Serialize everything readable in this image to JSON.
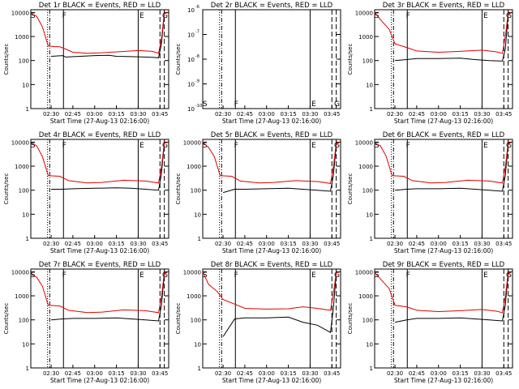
{
  "figure": {
    "colors": {
      "events": "#000000",
      "lld": "#e00000",
      "axes": "#000000",
      "background": "#ffffff"
    },
    "x_tick_labels": [
      "02:30",
      "02:45",
      "03:00",
      "03:15",
      "03:30",
      "03:45"
    ],
    "x_tick_minutes": [
      30,
      45,
      60,
      75,
      90,
      105
    ],
    "x_range_minutes": [
      16,
      111
    ],
    "xlabel": "Start Time (27-Aug-13 02:16:00)",
    "ylabel": "Counts/sec",
    "log_y_ticks": [
      {
        "value": 1,
        "label": "1"
      },
      {
        "value": 10,
        "label": "10"
      },
      {
        "value": 100,
        "label": "100"
      },
      {
        "value": 1000,
        "label": "1000"
      },
      {
        "value": 10000,
        "label": "10000"
      }
    ],
    "event_lines": [
      {
        "minute": 27.5,
        "style": "dotted"
      },
      {
        "minute": 29,
        "style": "dashdot"
      },
      {
        "minute": 38.5,
        "style": "solid"
      },
      {
        "minute": 90,
        "style": "solid"
      },
      {
        "minute": 105,
        "style": "dashed"
      },
      {
        "minute": 108,
        "style": "dashed"
      }
    ],
    "markers": [
      {
        "minute": 17.5,
        "label": "S"
      },
      {
        "minute": 39,
        "label": "F"
      },
      {
        "minute": 92.5,
        "label": "E"
      },
      {
        "minute": 108.5,
        "label": "G"
      }
    ]
  },
  "chart_data": [
    {
      "type": "line",
      "title": "Det 1r BLACK = Events, RED = LLD",
      "ylim": [
        1,
        13000
      ],
      "series": [
        {
          "name": "Events",
          "color": "#000000",
          "points": [
            [
              30,
              150
            ],
            [
              38,
              160
            ],
            [
              40,
              140
            ],
            [
              50,
              150
            ],
            [
              60,
              160
            ],
            [
              70,
              165
            ],
            [
              75,
              150
            ],
            [
              85,
              145
            ],
            [
              95,
              140
            ],
            [
              100,
              135
            ],
            [
              104,
              130
            ],
            [
              106,
              500
            ],
            [
              107,
              2000
            ],
            [
              108,
              9000
            ],
            [
              110,
              10000
            ]
          ]
        },
        {
          "name": "LLD",
          "color": "#e00000",
          "points": [
            [
              16,
              9000
            ],
            [
              20,
              7000
            ],
            [
              24,
              2500
            ],
            [
              28,
              400
            ],
            [
              32,
              380
            ],
            [
              36,
              370
            ],
            [
              40,
              300
            ],
            [
              45,
              220
            ],
            [
              55,
              200
            ],
            [
              65,
              210
            ],
            [
              75,
              230
            ],
            [
              90,
              260
            ],
            [
              100,
              240
            ],
            [
              104,
              200
            ],
            [
              106,
              800
            ],
            [
              108,
              9000
            ],
            [
              110,
              10000
            ]
          ]
        }
      ]
    },
    {
      "type": "line",
      "title": "Det 2r BLACK = Events, RED = LLD",
      "ylim": [
        1e-10,
        1e-06
      ],
      "series": [
        {
          "name": "Events",
          "color": "#000000",
          "points": []
        },
        {
          "name": "LLD",
          "color": "#e00000",
          "points": []
        }
      ]
    },
    {
      "type": "line",
      "title": "Det 3r BLACK = Events, RED = LLD",
      "ylim": [
        1,
        13000
      ],
      "series": [
        {
          "name": "Events",
          "color": "#000000",
          "points": [
            [
              30,
              100
            ],
            [
              38,
              110
            ],
            [
              45,
              120
            ],
            [
              60,
              120
            ],
            [
              75,
              125
            ],
            [
              85,
              110
            ],
            [
              95,
              100
            ],
            [
              104,
              95
            ],
            [
              106,
              300
            ],
            [
              108,
              8000
            ],
            [
              110,
              10000
            ]
          ]
        },
        {
          "name": "LLD",
          "color": "#e00000",
          "points": [
            [
              16,
              10000
            ],
            [
              20,
              5000
            ],
            [
              26,
              2000
            ],
            [
              30,
              500
            ],
            [
              38,
              350
            ],
            [
              45,
              250
            ],
            [
              60,
              220
            ],
            [
              75,
              240
            ],
            [
              90,
              270
            ],
            [
              100,
              230
            ],
            [
              104,
              200
            ],
            [
              106,
              1000
            ],
            [
              108,
              9000
            ],
            [
              110,
              10000
            ]
          ]
        }
      ]
    },
    {
      "type": "line",
      "title": "Det 4r BLACK = Events, RED = LLD",
      "ylim": [
        1,
        13000
      ],
      "series": [
        {
          "name": "Events",
          "color": "#000000",
          "points": [
            [
              30,
              110
            ],
            [
              38,
              110
            ],
            [
              45,
              115
            ],
            [
              60,
              120
            ],
            [
              75,
              125
            ],
            [
              85,
              120
            ],
            [
              95,
              110
            ],
            [
              104,
              100
            ],
            [
              106,
              500
            ],
            [
              108,
              9000
            ],
            [
              110,
              10000
            ]
          ]
        },
        {
          "name": "LLD",
          "color": "#e00000",
          "points": [
            [
              16,
              9500
            ],
            [
              20,
              7000
            ],
            [
              24,
              2500
            ],
            [
              28,
              400
            ],
            [
              36,
              380
            ],
            [
              42,
              250
            ],
            [
              55,
              200
            ],
            [
              65,
              210
            ],
            [
              80,
              260
            ],
            [
              95,
              240
            ],
            [
              104,
              200
            ],
            [
              106,
              900
            ],
            [
              108,
              9000
            ],
            [
              110,
              10000
            ]
          ]
        }
      ]
    },
    {
      "type": "line",
      "title": "Det 5r BLACK = Events, RED = LLD",
      "ylim": [
        1,
        13000
      ],
      "series": [
        {
          "name": "Events",
          "color": "#000000",
          "points": [
            [
              30,
              80
            ],
            [
              38,
              110
            ],
            [
              45,
              110
            ],
            [
              60,
              115
            ],
            [
              75,
              120
            ],
            [
              85,
              110
            ],
            [
              95,
              100
            ],
            [
              104,
              90
            ],
            [
              106,
              400
            ],
            [
              108,
              8000
            ],
            [
              110,
              10000
            ]
          ]
        },
        {
          "name": "LLD",
          "color": "#e00000",
          "points": [
            [
              16,
              10000
            ],
            [
              20,
              6000
            ],
            [
              24,
              2500
            ],
            [
              28,
              400
            ],
            [
              36,
              380
            ],
            [
              42,
              240
            ],
            [
              55,
              200
            ],
            [
              65,
              210
            ],
            [
              80,
              250
            ],
            [
              95,
              230
            ],
            [
              104,
              190
            ],
            [
              106,
              900
            ],
            [
              108,
              9000
            ],
            [
              110,
              10000
            ]
          ]
        }
      ]
    },
    {
      "type": "line",
      "title": "Det 6r BLACK = Events, RED = LLD",
      "ylim": [
        1,
        13000
      ],
      "series": [
        {
          "name": "Events",
          "color": "#000000",
          "points": [
            [
              30,
              100
            ],
            [
              38,
              110
            ],
            [
              45,
              115
            ],
            [
              60,
              115
            ],
            [
              75,
              120
            ],
            [
              85,
              110
            ],
            [
              95,
              100
            ],
            [
              104,
              90
            ],
            [
              106,
              400
            ],
            [
              108,
              8000
            ],
            [
              110,
              10000
            ]
          ]
        },
        {
          "name": "LLD",
          "color": "#e00000",
          "points": [
            [
              16,
              9000
            ],
            [
              20,
              7000
            ],
            [
              24,
              2500
            ],
            [
              28,
              400
            ],
            [
              36,
              380
            ],
            [
              42,
              250
            ],
            [
              55,
              200
            ],
            [
              65,
              210
            ],
            [
              80,
              260
            ],
            [
              95,
              240
            ],
            [
              104,
              200
            ],
            [
              106,
              900
            ],
            [
              108,
              9000
            ],
            [
              110,
              10000
            ]
          ]
        }
      ]
    },
    {
      "type": "line",
      "title": "Det 7r BLACK = Events, RED = LLD",
      "ylim": [
        1,
        13000
      ],
      "series": [
        {
          "name": "Events",
          "color": "#000000",
          "points": [
            [
              30,
              100
            ],
            [
              38,
              110
            ],
            [
              45,
              115
            ],
            [
              60,
              115
            ],
            [
              75,
              120
            ],
            [
              85,
              110
            ],
            [
              95,
              100
            ],
            [
              104,
              90
            ],
            [
              106,
              400
            ],
            [
              108,
              8000
            ],
            [
              110,
              10000
            ]
          ]
        },
        {
          "name": "LLD",
          "color": "#e00000",
          "points": [
            [
              16,
              8000
            ],
            [
              20,
              6000
            ],
            [
              24,
              2500
            ],
            [
              28,
              400
            ],
            [
              36,
              380
            ],
            [
              42,
              250
            ],
            [
              55,
              200
            ],
            [
              65,
              210
            ],
            [
              80,
              260
            ],
            [
              95,
              240
            ],
            [
              104,
              200
            ],
            [
              106,
              900
            ],
            [
              108,
              9000
            ],
            [
              110,
              10000
            ]
          ]
        }
      ]
    },
    {
      "type": "line",
      "title": "Det 8r BLACK = Events, RED = LLD",
      "ylim": [
        1,
        13000
      ],
      "series": [
        {
          "name": "Events",
          "color": "#000000",
          "points": [
            [
              30,
              20
            ],
            [
              38,
              110
            ],
            [
              45,
              120
            ],
            [
              60,
              120
            ],
            [
              75,
              130
            ],
            [
              85,
              80
            ],
            [
              95,
              60
            ],
            [
              104,
              30
            ],
            [
              106,
              300
            ],
            [
              108,
              9000
            ],
            [
              110,
              10000
            ]
          ]
        },
        {
          "name": "LLD",
          "color": "#e00000",
          "points": [
            [
              16,
              10000
            ],
            [
              20,
              3000
            ],
            [
              26,
              1500
            ],
            [
              30,
              700
            ],
            [
              38,
              450
            ],
            [
              45,
              300
            ],
            [
              60,
              280
            ],
            [
              75,
              290
            ],
            [
              85,
              350
            ],
            [
              95,
              300
            ],
            [
              104,
              250
            ],
            [
              106,
              1200
            ],
            [
              108,
              9000
            ],
            [
              110,
              10000
            ]
          ]
        }
      ]
    },
    {
      "type": "line",
      "title": "Det 9r BLACK = Events, RED = LLD",
      "ylim": [
        1,
        13000
      ],
      "series": [
        {
          "name": "Events",
          "color": "#000000",
          "points": [
            [
              30,
              80
            ],
            [
              38,
              100
            ],
            [
              45,
              115
            ],
            [
              60,
              115
            ],
            [
              75,
              120
            ],
            [
              85,
              110
            ],
            [
              95,
              100
            ],
            [
              104,
              90
            ],
            [
              106,
              400
            ],
            [
              108,
              8000
            ],
            [
              110,
              10000
            ]
          ]
        },
        {
          "name": "LLD",
          "color": "#e00000",
          "points": [
            [
              16,
              9000
            ],
            [
              20,
              5000
            ],
            [
              26,
              2000
            ],
            [
              30,
              400
            ],
            [
              38,
              350
            ],
            [
              45,
              250
            ],
            [
              60,
              220
            ],
            [
              75,
              240
            ],
            [
              90,
              270
            ],
            [
              100,
              230
            ],
            [
              104,
              200
            ],
            [
              106,
              900
            ],
            [
              108,
              9000
            ],
            [
              110,
              10000
            ]
          ]
        }
      ]
    }
  ]
}
